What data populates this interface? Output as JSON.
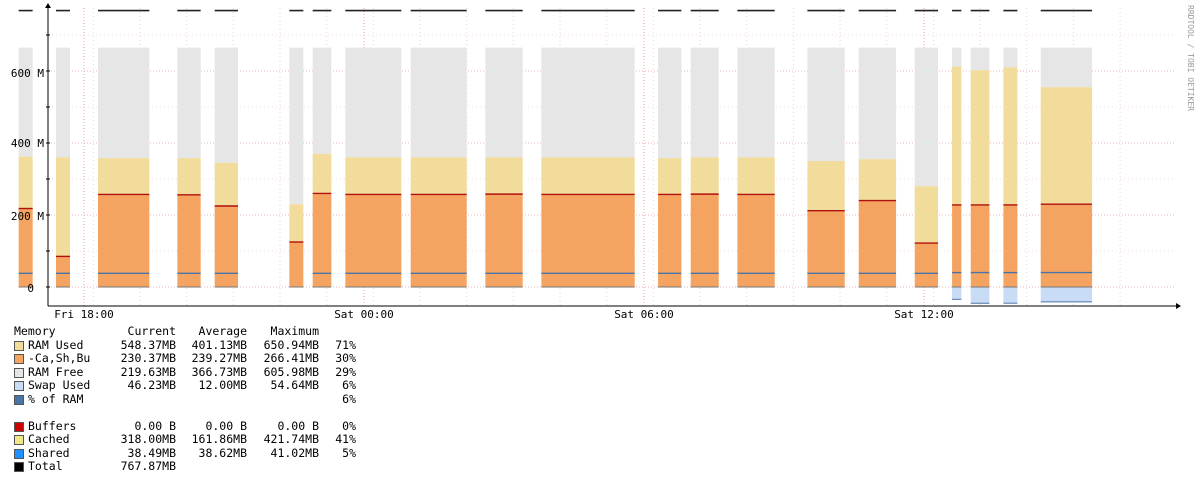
{
  "chart_data": {
    "type": "area",
    "watermark": "RRDTOOL / TOBI OETIKER",
    "x_ticks": [
      "Fri 18:00",
      "Sat 00:00",
      "Sat 06:00",
      "Sat 12:00"
    ],
    "y_ticks": [
      "0",
      "200 M",
      "400 M",
      "600 M"
    ],
    "ylim": [
      -50,
      760
    ],
    "total_mb": 767.87,
    "segments": [
      {
        "t0": -2.4,
        "t1": -2.2,
        "ram_used": 364,
        "cached": 255,
        "shared": 38,
        "swap": 0
      },
      {
        "t0": -1.4,
        "t1": -1.1,
        "ram_used": 362,
        "cached": 218,
        "shared": 38,
        "swap": 0
      },
      {
        "t0": -0.6,
        "t1": -0.3,
        "ram_used": 360,
        "cached": 85,
        "shared": 38,
        "swap": 0
      },
      {
        "t0": 0.3,
        "t1": 1.4,
        "ram_used": 358,
        "cached": 257,
        "shared": 38,
        "swap": 0
      },
      {
        "t0": 2.0,
        "t1": 2.5,
        "ram_used": 358,
        "cached": 256,
        "shared": 38,
        "swap": 0
      },
      {
        "t0": 2.8,
        "t1": 3.3,
        "ram_used": 345,
        "cached": 225,
        "shared": 38,
        "swap": 0
      },
      {
        "t0": 4.4,
        "t1": 4.7,
        "ram_used": 230,
        "cached": 125,
        "shared": 0,
        "swap": 0
      },
      {
        "t0": 4.9,
        "t1": 5.3,
        "ram_used": 370,
        "cached": 260,
        "shared": 38,
        "swap": 0
      },
      {
        "t0": 5.6,
        "t1": 6.8,
        "ram_used": 360,
        "cached": 257,
        "shared": 38,
        "swap": 0
      },
      {
        "t0": 7.0,
        "t1": 8.2,
        "ram_used": 360,
        "cached": 257,
        "shared": 38,
        "swap": 0
      },
      {
        "t0": 8.6,
        "t1": 9.4,
        "ram_used": 360,
        "cached": 258,
        "shared": 38,
        "swap": 0
      },
      {
        "t0": 9.8,
        "t1": 11.8,
        "ram_used": 360,
        "cached": 257,
        "shared": 38,
        "swap": 0
      },
      {
        "t0": 12.3,
        "t1": 12.8,
        "ram_used": 358,
        "cached": 257,
        "shared": 38,
        "swap": 0
      },
      {
        "t0": 13.0,
        "t1": 13.6,
        "ram_used": 360,
        "cached": 258,
        "shared": 38,
        "swap": 0
      },
      {
        "t0": 14.0,
        "t1": 14.8,
        "ram_used": 360,
        "cached": 257,
        "shared": 38,
        "swap": 0
      },
      {
        "t0": 15.5,
        "t1": 16.3,
        "ram_used": 350,
        "cached": 212,
        "shared": 38,
        "swap": 0
      },
      {
        "t0": 16.6,
        "t1": 17.4,
        "ram_used": 355,
        "cached": 240,
        "shared": 38,
        "swap": 0
      },
      {
        "t0": 17.8,
        "t1": 18.3,
        "ram_used": 280,
        "cached": 122,
        "shared": 38,
        "swap": 0
      },
      {
        "t0": 18.6,
        "t1": 18.8,
        "ram_used": 612,
        "cached": 228,
        "shared": 40,
        "swap": 38
      },
      {
        "t0": 19.0,
        "t1": 19.4,
        "ram_used": 602,
        "cached": 228,
        "shared": 40,
        "swap": 50
      },
      {
        "t0": 19.7,
        "t1": 20.0,
        "ram_used": 610,
        "cached": 228,
        "shared": 40,
        "swap": 50
      },
      {
        "t0": 20.5,
        "t1": 21.6,
        "ram_used": 555,
        "cached": 230,
        "shared": 40,
        "swap": 46
      }
    ]
  },
  "legend": {
    "header": {
      "name": "Memory",
      "current": "Current",
      "average": "Average",
      "maximum": "Maximum"
    },
    "group1": [
      {
        "name": "RAM Used",
        "current": "548.37MB",
        "average": "401.13MB",
        "maximum": "650.94MB",
        "pct": "71%",
        "color": "#f1dc9b"
      },
      {
        "name": "-Ca,Sh,Bu",
        "current": "230.37MB",
        "average": "239.27MB",
        "maximum": "266.41MB",
        "pct": "30%",
        "color": "#f4a460"
      },
      {
        "name": "RAM Free",
        "current": "219.63MB",
        "average": "366.73MB",
        "maximum": "605.98MB",
        "pct": "29%",
        "color": "#e6e6e6"
      },
      {
        "name": "Swap Used",
        "current": "46.23MB",
        "average": "12.00MB",
        "maximum": "54.64MB",
        "pct": "6%",
        "color": "#c9dcf5"
      },
      {
        "name": "% of RAM",
        "current": "",
        "average": "",
        "maximum": "",
        "pct": "6%",
        "color": "#4a74a8"
      }
    ],
    "group2": [
      {
        "name": "Buffers",
        "current": "0.00 B",
        "average": "0.00 B",
        "maximum": "0.00 B",
        "pct": "0%",
        "color": "#cc0000"
      },
      {
        "name": "Cached",
        "current": "318.00MB",
        "average": "161.86MB",
        "maximum": "421.74MB",
        "pct": "41%",
        "color": "#f0e68c"
      },
      {
        "name": "Shared",
        "current": "38.49MB",
        "average": "38.62MB",
        "maximum": "41.02MB",
        "pct": "5%",
        "color": "#1e90ff"
      },
      {
        "name": "Total",
        "current": "767.87MB",
        "average": "",
        "maximum": "",
        "pct": "",
        "color": "#000000"
      }
    ]
  }
}
